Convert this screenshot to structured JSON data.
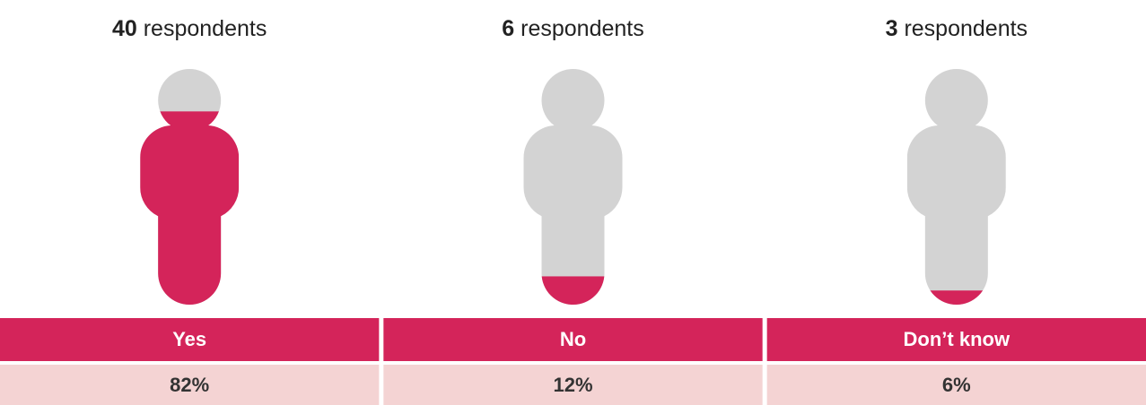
{
  "chart_data": {
    "type": "pictogram",
    "categories": [
      "Yes",
      "No",
      "Don’t know"
    ],
    "counts": [
      40,
      6,
      3
    ],
    "count_unit": "respondents",
    "values": [
      82,
      12,
      6
    ],
    "value_labels": [
      "82%",
      "12%",
      "6%"
    ],
    "ylim": [
      0,
      100
    ],
    "color": "#d4245a",
    "empty_color": "#d3d3d3",
    "label_band_color": "#f4d3d3"
  }
}
